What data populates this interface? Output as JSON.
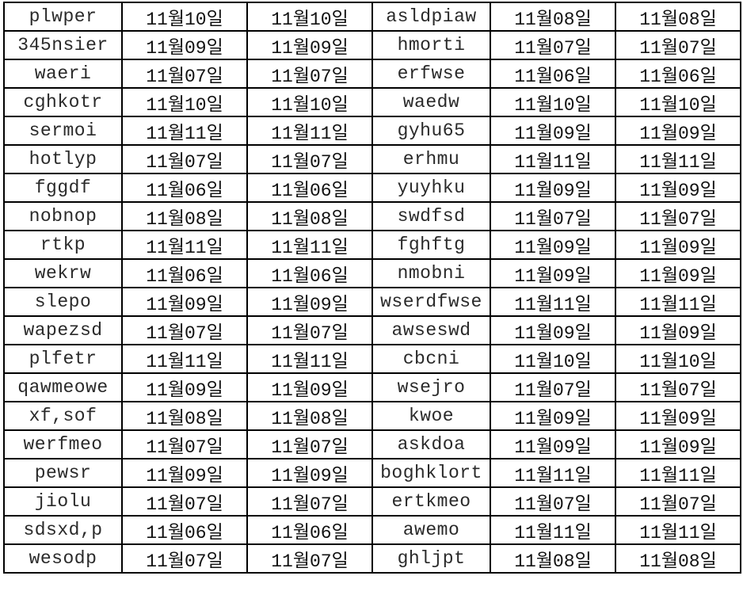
{
  "rows": [
    [
      "plwper",
      "11월10일",
      "11월10일",
      "asldpiaw",
      "11월08일",
      "11월08일"
    ],
    [
      "345nsier",
      "11월09일",
      "11월09일",
      "hmorti",
      "11월07일",
      "11월07일"
    ],
    [
      "waeri",
      "11월07일",
      "11월07일",
      "erfwse",
      "11월06일",
      "11월06일"
    ],
    [
      "cghkotr",
      "11월10일",
      "11월10일",
      "waedw",
      "11월10일",
      "11월10일"
    ],
    [
      "sermoi",
      "11월11일",
      "11월11일",
      "gyhu65",
      "11월09일",
      "11월09일"
    ],
    [
      "hotlyp",
      "11월07일",
      "11월07일",
      "erhmu",
      "11월11일",
      "11월11일"
    ],
    [
      "fggdf",
      "11월06일",
      "11월06일",
      "yuyhku",
      "11월09일",
      "11월09일"
    ],
    [
      "nobnop",
      "11월08일",
      "11월08일",
      "swdfsd",
      "11월07일",
      "11월07일"
    ],
    [
      "rtkp",
      "11월11일",
      "11월11일",
      "fghftg",
      "11월09일",
      "11월09일"
    ],
    [
      "wekrw",
      "11월06일",
      "11월06일",
      "nmobni",
      "11월09일",
      "11월09일"
    ],
    [
      "slepo",
      "11월09일",
      "11월09일",
      "wserdfwse",
      "11월11일",
      "11월11일"
    ],
    [
      "wapezsd",
      "11월07일",
      "11월07일",
      "awseswd",
      "11월09일",
      "11월09일"
    ],
    [
      "plfetr",
      "11월11일",
      "11월11일",
      "cbcni",
      "11월10일",
      "11월10일"
    ],
    [
      "qawmeowe",
      "11월09일",
      "11월09일",
      "wsejro",
      "11월07일",
      "11월07일"
    ],
    [
      "xf,sof",
      "11월08일",
      "11월08일",
      "kwoe",
      "11월09일",
      "11월09일"
    ],
    [
      "werfmeo",
      "11월07일",
      "11월07일",
      "askdoa",
      "11월09일",
      "11월09일"
    ],
    [
      "pewsr",
      "11월09일",
      "11월09일",
      "boghklort",
      "11월11일",
      "11월11일"
    ],
    [
      "jiolu",
      "11월07일",
      "11월07일",
      "ertkmeo",
      "11월07일",
      "11월07일"
    ],
    [
      "sdsxd,p",
      "11월06일",
      "11월06일",
      "awemo",
      "11월11일",
      "11월11일"
    ],
    [
      "wesodp",
      "11월07일",
      "11월07일",
      "ghljpt",
      "11월08일",
      "11월08일"
    ]
  ]
}
